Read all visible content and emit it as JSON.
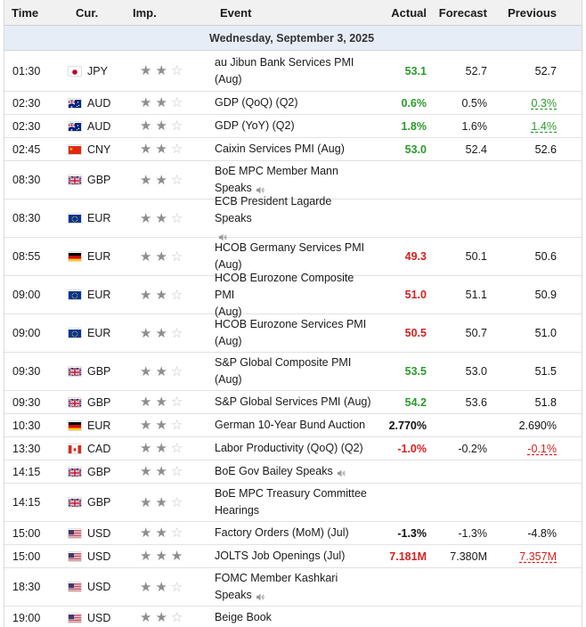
{
  "headers": {
    "time": "Time",
    "currency": "Cur.",
    "importance": "Imp.",
    "event": "Event",
    "actual": "Actual",
    "forecast": "Forecast",
    "previous": "Previous"
  },
  "date_label": "Wednesday, September 3, 2025",
  "colors": {
    "positive": "#2b9a2b",
    "negative": "#d91f1f",
    "star_filled": "#8e8e8e",
    "star_empty": "#c4c4c4"
  },
  "rows": [
    {
      "time": "01:30",
      "flag": "jp",
      "currency": "JPY",
      "stars": 2,
      "event_lines": [
        "au Jibun Bank Services PMI",
        "(Aug)"
      ],
      "speaker": false,
      "actual": "53.1",
      "actual_tone": "g",
      "forecast": "52.7",
      "previous": "52.7",
      "previous_tone": "pn"
    },
    {
      "time": "02:30",
      "flag": "au",
      "currency": "AUD",
      "stars": 2,
      "event_lines": [
        "GDP (QoQ) (Q2)"
      ],
      "speaker": false,
      "actual": "0.6%",
      "actual_tone": "g",
      "forecast": "0.5%",
      "previous": "0.3%",
      "previous_tone": "pg"
    },
    {
      "time": "02:30",
      "flag": "au",
      "currency": "AUD",
      "stars": 2,
      "event_lines": [
        "GDP (YoY) (Q2)"
      ],
      "speaker": false,
      "actual": "1.8%",
      "actual_tone": "g",
      "forecast": "1.6%",
      "previous": "1.4%",
      "previous_tone": "pg"
    },
    {
      "time": "02:45",
      "flag": "cn",
      "currency": "CNY",
      "stars": 2,
      "event_lines": [
        "Caixin Services PMI (Aug)"
      ],
      "speaker": false,
      "actual": "53.0",
      "actual_tone": "g",
      "forecast": "52.4",
      "previous": "52.6",
      "previous_tone": "pn"
    },
    {
      "time": "08:30",
      "flag": "gb",
      "currency": "GBP",
      "stars": 2,
      "event_lines": [
        "BoE MPC Member Mann",
        "Speaks"
      ],
      "speaker": true,
      "actual": "",
      "actual_tone": "b",
      "forecast": "",
      "previous": "",
      "previous_tone": "pn"
    },
    {
      "time": "08:30",
      "flag": "eu",
      "currency": "EUR",
      "stars": 2,
      "event_lines": [
        "ECB President Lagarde Speaks",
        ""
      ],
      "speaker": true,
      "actual": "",
      "actual_tone": "b",
      "forecast": "",
      "previous": "",
      "previous_tone": "pn"
    },
    {
      "time": "08:55",
      "flag": "de",
      "currency": "EUR",
      "stars": 2,
      "event_lines": [
        "HCOB Germany Services PMI",
        "(Aug)"
      ],
      "speaker": false,
      "actual": "49.3",
      "actual_tone": "r",
      "forecast": "50.1",
      "previous": "50.6",
      "previous_tone": "pn"
    },
    {
      "time": "09:00",
      "flag": "eu",
      "currency": "EUR",
      "stars": 2,
      "event_lines": [
        "HCOB Eurozone Composite PMI",
        "(Aug)"
      ],
      "speaker": false,
      "actual": "51.0",
      "actual_tone": "r",
      "forecast": "51.1",
      "previous": "50.9",
      "previous_tone": "pn"
    },
    {
      "time": "09:00",
      "flag": "eu",
      "currency": "EUR",
      "stars": 2,
      "event_lines": [
        "HCOB Eurozone Services PMI",
        "(Aug)"
      ],
      "speaker": false,
      "actual": "50.5",
      "actual_tone": "r",
      "forecast": "50.7",
      "previous": "51.0",
      "previous_tone": "pn"
    },
    {
      "time": "09:30",
      "flag": "gb",
      "currency": "GBP",
      "stars": 2,
      "event_lines": [
        "S&P Global Composite PMI",
        "(Aug)"
      ],
      "speaker": false,
      "actual": "53.5",
      "actual_tone": "g",
      "forecast": "53.0",
      "previous": "51.5",
      "previous_tone": "pn"
    },
    {
      "time": "09:30",
      "flag": "gb",
      "currency": "GBP",
      "stars": 2,
      "event_lines": [
        "S&P Global Services PMI (Aug)"
      ],
      "speaker": false,
      "actual": "54.2",
      "actual_tone": "g",
      "forecast": "53.6",
      "previous": "51.8",
      "previous_tone": "pn"
    },
    {
      "time": "10:30",
      "flag": "de",
      "currency": "EUR",
      "stars": 2,
      "event_lines": [
        "German 10-Year Bund Auction"
      ],
      "speaker": false,
      "actual": "2.770%",
      "actual_tone": "b",
      "forecast": "",
      "previous": "2.690%",
      "previous_tone": "pn"
    },
    {
      "time": "13:30",
      "flag": "ca",
      "currency": "CAD",
      "stars": 2,
      "event_lines": [
        "Labor Productivity (QoQ) (Q2)"
      ],
      "speaker": false,
      "actual": "-1.0%",
      "actual_tone": "r",
      "forecast": "-0.2%",
      "previous": "-0.1%",
      "previous_tone": "pr"
    },
    {
      "time": "14:15",
      "flag": "gb",
      "currency": "GBP",
      "stars": 2,
      "event_lines": [
        "BoE Gov Bailey Speaks"
      ],
      "speaker": true,
      "actual": "",
      "actual_tone": "b",
      "forecast": "",
      "previous": "",
      "previous_tone": "pn"
    },
    {
      "time": "14:15",
      "flag": "gb",
      "currency": "GBP",
      "stars": 2,
      "event_lines": [
        "BoE MPC Treasury Committee",
        "Hearings"
      ],
      "speaker": false,
      "actual": "",
      "actual_tone": "b",
      "forecast": "",
      "previous": "",
      "previous_tone": "pn"
    },
    {
      "time": "15:00",
      "flag": "us",
      "currency": "USD",
      "stars": 2,
      "event_lines": [
        "Factory Orders (MoM) (Jul)"
      ],
      "speaker": false,
      "actual": "-1.3%",
      "actual_tone": "b",
      "forecast": "-1.3%",
      "previous": "-4.8%",
      "previous_tone": "pn"
    },
    {
      "time": "15:00",
      "flag": "us",
      "currency": "USD",
      "stars": 3,
      "event_lines": [
        "JOLTS Job Openings (Jul)"
      ],
      "speaker": false,
      "actual": "7.181M",
      "actual_tone": "r",
      "forecast": "7.380M",
      "previous": "7.357M",
      "previous_tone": "pr"
    },
    {
      "time": "18:30",
      "flag": "us",
      "currency": "USD",
      "stars": 2,
      "event_lines": [
        "FOMC Member Kashkari",
        "Speaks"
      ],
      "speaker": true,
      "actual": "",
      "actual_tone": "b",
      "forecast": "",
      "previous": "",
      "previous_tone": "pn"
    },
    {
      "time": "19:00",
      "flag": "us",
      "currency": "USD",
      "stars": 2,
      "event_lines": [
        "Beige Book"
      ],
      "speaker": false,
      "actual": "",
      "actual_tone": "b",
      "forecast": "",
      "previous": "",
      "previous_tone": "pn"
    }
  ]
}
